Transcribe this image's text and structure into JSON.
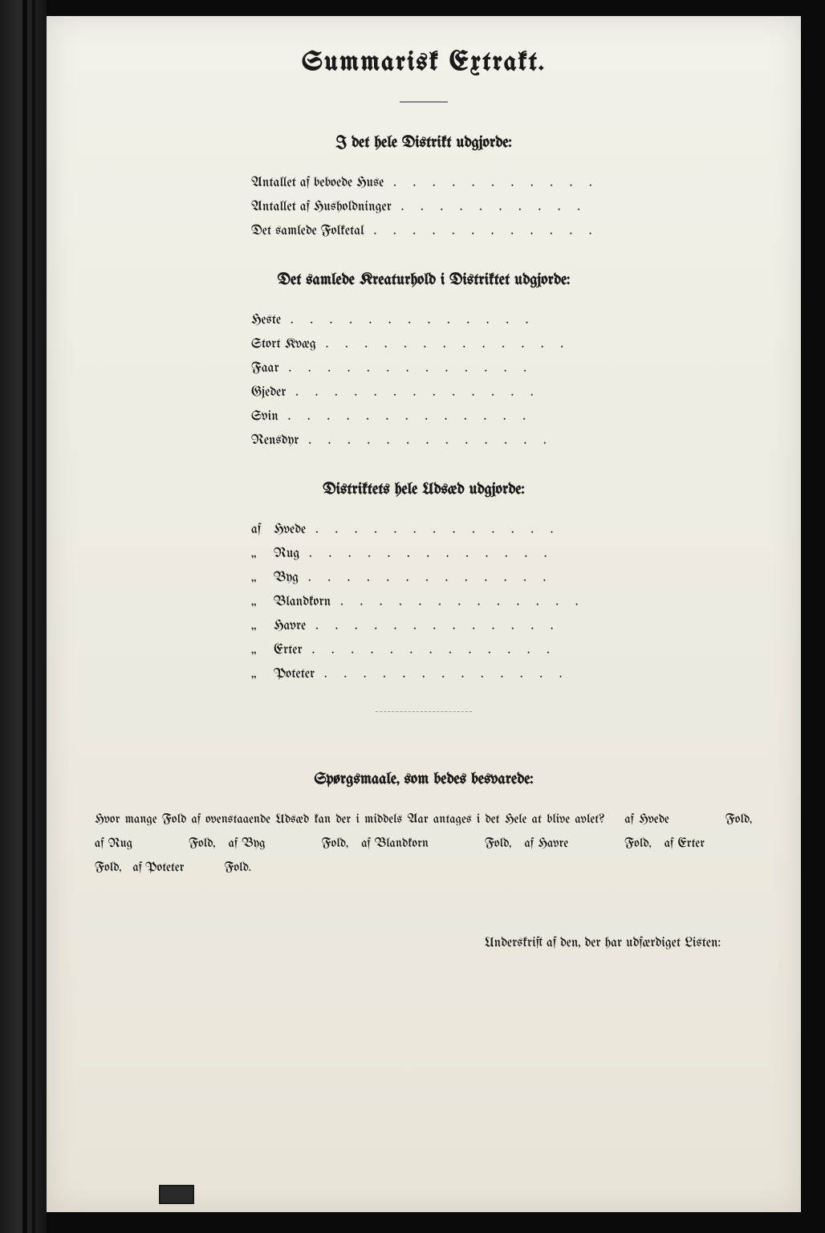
{
  "title": "Summarisk Extrakt.",
  "section1": {
    "heading": "I det hele Distrikt udgjorde:",
    "items": [
      {
        "label": "Antallet af beboede Huse"
      },
      {
        "label": "Antallet af Husholdninger"
      },
      {
        "label": "Det samlede Folketal"
      }
    ]
  },
  "section2": {
    "heading": "Det samlede Kreaturhold i Distriktet udgjorde:",
    "items": [
      {
        "label": "Heste"
      },
      {
        "label": "Stort Kvæg"
      },
      {
        "label": "Faar"
      },
      {
        "label": "Gjeder"
      },
      {
        "label": "Svin"
      },
      {
        "label": "Rensdyr"
      }
    ]
  },
  "section3": {
    "heading": "Distriktets hele Udsæd udgjorde:",
    "items": [
      {
        "prefix": "af",
        "label": "Hvede"
      },
      {
        "prefix": "„",
        "label": "Rug"
      },
      {
        "prefix": "„",
        "label": "Byg"
      },
      {
        "prefix": "„",
        "label": "Blandkorn"
      },
      {
        "prefix": "„",
        "label": "Havre"
      },
      {
        "prefix": "„",
        "label": "Erter"
      },
      {
        "prefix": "„",
        "label": "Poteter"
      }
    ]
  },
  "questions": {
    "heading": "Spørgsmaale, som bedes besvarede:",
    "intro": "Hvor mange Fold af ovenstaaende Udsæd kan der i middels Aar antages i det Hele at blive avlet?",
    "parts": [
      {
        "of": "af Hvede",
        "unit": "Fold,"
      },
      {
        "of": "af Rug",
        "unit": "Fold,"
      },
      {
        "of": "af Byg",
        "unit": "Fold,"
      },
      {
        "of": "af Blandkorn",
        "unit": "Fold,"
      },
      {
        "of": "af Havre",
        "unit": "Fold,"
      },
      {
        "of": "af Erter",
        "unit": "Fold,"
      },
      {
        "of": "af Poteter",
        "unit": "Fold."
      }
    ]
  },
  "signature": "Underskrift af den, der har udfærdiget Listen:",
  "dots": ". . . . . . . . . . . . ."
}
